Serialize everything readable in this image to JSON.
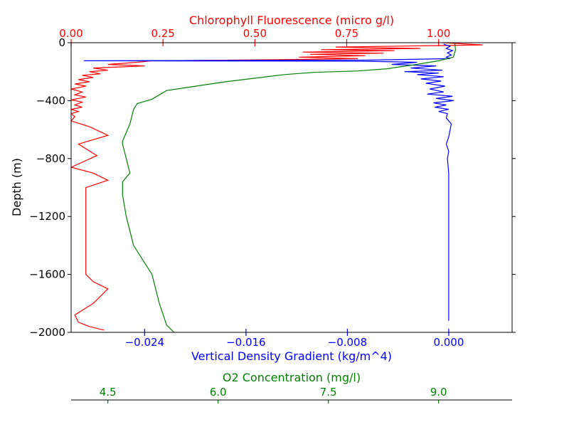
{
  "chart_data": {
    "type": "line",
    "ylabel": "Depth (m)",
    "ylim": [
      -2000,
      0
    ],
    "y_ticks": [
      0,
      -400,
      -800,
      -1200,
      -1600,
      -2000
    ],
    "y_tick_labels": [
      "0",
      "−400",
      "−800",
      "−1200",
      "−1600",
      "−2000"
    ],
    "grid": false,
    "axes": {
      "chlorophyll": {
        "label": "Chlorophyll Fluorescence (micro g/l)",
        "color": "#ff0000",
        "position": "top",
        "range": [
          0.0,
          1.2
        ],
        "ticks": [
          0.0,
          0.25,
          0.5,
          0.75,
          1.0
        ],
        "tick_labels": [
          "0.00",
          "0.25",
          "0.50",
          "0.75",
          "1.00"
        ]
      },
      "density": {
        "label": "Vertical Density Gradient (kg/m^4)",
        "color": "#0000ff",
        "position": "bottom",
        "range": [
          -0.0298,
          0.005
        ],
        "ticks": [
          -0.024,
          -0.016,
          -0.008,
          0.0
        ],
        "tick_labels": [
          "−0.024",
          "−0.016",
          "−0.008",
          "0.000"
        ]
      },
      "oxygen": {
        "label": "O2 Concentration (mg/l)",
        "color": "#008000",
        "position": "bottom-offset",
        "range": [
          4.0,
          10.0
        ],
        "ticks": [
          4.5,
          6.0,
          7.5,
          9.0
        ],
        "tick_labels": [
          "4.5",
          "6.0",
          "7.5",
          "9.0"
        ]
      }
    },
    "series": [
      {
        "axis": "chlorophyll",
        "color": "#ff0000",
        "points": [
          [
            1.01,
            0
          ],
          [
            1.12,
            -15
          ],
          [
            0.72,
            -30
          ],
          [
            0.95,
            -40
          ],
          [
            0.68,
            -48
          ],
          [
            0.88,
            -55
          ],
          [
            0.63,
            -65
          ],
          [
            0.85,
            -72
          ],
          [
            0.65,
            -80
          ],
          [
            0.8,
            -90
          ],
          [
            0.62,
            -100
          ],
          [
            0.78,
            -110
          ],
          [
            0.55,
            -118
          ],
          [
            0.22,
            -125
          ],
          [
            0.18,
            -135
          ],
          [
            0.1,
            -150
          ],
          [
            0.2,
            -160
          ],
          [
            0.06,
            -175
          ],
          [
            0.1,
            -190
          ],
          [
            0.05,
            -200
          ],
          [
            0.08,
            -215
          ],
          [
            0.03,
            -225
          ],
          [
            0.06,
            -240
          ],
          [
            0.02,
            -255
          ],
          [
            0.05,
            -270
          ],
          [
            0.01,
            -285
          ],
          [
            0.04,
            -300
          ],
          [
            0.0,
            -320
          ],
          [
            0.03,
            -340
          ],
          [
            0.01,
            -360
          ],
          [
            0.04,
            -375
          ],
          [
            0.0,
            -395
          ],
          [
            0.03,
            -410
          ],
          [
            0.01,
            -430
          ],
          [
            0.03,
            -445
          ],
          [
            0.0,
            -460
          ],
          [
            0.02,
            -475
          ],
          [
            0.0,
            -490
          ],
          [
            0.01,
            -510
          ],
          [
            0.0,
            -540
          ],
          [
            0.05,
            -580
          ],
          [
            0.1,
            -640
          ],
          [
            0.02,
            -700
          ],
          [
            0.07,
            -780
          ],
          [
            0.0,
            -860
          ],
          [
            0.06,
            -900
          ],
          [
            0.1,
            -950
          ],
          [
            0.04,
            -1000
          ],
          [
            0.04,
            -1100
          ],
          [
            0.04,
            -1300
          ],
          [
            0.04,
            -1500
          ],
          [
            0.04,
            -1600
          ],
          [
            0.06,
            -1650
          ],
          [
            0.1,
            -1700
          ],
          [
            0.06,
            -1800
          ],
          [
            0.01,
            -1880
          ],
          [
            0.02,
            -1930
          ],
          [
            0.05,
            -1960
          ],
          [
            0.09,
            -1985
          ]
        ]
      },
      {
        "axis": "density",
        "color": "#0000ff",
        "points": [
          [
            -0.0004,
            -10
          ],
          [
            0.0001,
            -25
          ],
          [
            -0.0002,
            -40
          ],
          [
            0.0003,
            -55
          ],
          [
            -0.0001,
            -70
          ],
          [
            0.0002,
            -85
          ],
          [
            -0.0002,
            -100
          ],
          [
            0.0001,
            -110
          ],
          [
            -0.006,
            -120
          ],
          [
            -0.0288,
            -125
          ],
          [
            -0.007,
            -128
          ],
          [
            -0.0025,
            -135
          ],
          [
            -0.0045,
            -150
          ],
          [
            -0.001,
            -160
          ],
          [
            -0.003,
            -175
          ],
          [
            -0.0005,
            -190
          ],
          [
            -0.0035,
            -200
          ],
          [
            -0.0008,
            -210
          ],
          [
            -0.0025,
            -220
          ],
          [
            -0.0004,
            -235
          ],
          [
            -0.0022,
            -250
          ],
          [
            -0.0006,
            -265
          ],
          [
            -0.0018,
            -280
          ],
          [
            -0.0003,
            -300
          ],
          [
            -0.0015,
            -320
          ],
          [
            -0.0004,
            -340
          ],
          [
            -0.0017,
            -355
          ],
          [
            0.0003,
            -370
          ],
          [
            -0.001,
            -385
          ],
          [
            0.0004,
            -400
          ],
          [
            -0.0012,
            -415
          ],
          [
            -0.0002,
            -430
          ],
          [
            -0.0011,
            -445
          ],
          [
            0.0,
            -460
          ],
          [
            -0.0008,
            -475
          ],
          [
            -0.0001,
            -490
          ],
          [
            -0.0002,
            -520
          ],
          [
            0.0002,
            -560
          ],
          [
            0.0,
            -650
          ],
          [
            -0.0002,
            -700
          ],
          [
            0.0,
            -750
          ],
          [
            -0.0001,
            -800
          ],
          [
            0.0,
            -900
          ],
          [
            0.0,
            -1000
          ],
          [
            0.0,
            -1200
          ],
          [
            0.0,
            -1400
          ],
          [
            0.0,
            -1600
          ],
          [
            0.0,
            -1800
          ],
          [
            0.0,
            -1920
          ]
        ]
      },
      {
        "axis": "oxygen",
        "color": "#008000",
        "points": [
          [
            9.22,
            0
          ],
          [
            9.23,
            -50
          ],
          [
            9.2,
            -100
          ],
          [
            9.0,
            -125
          ],
          [
            8.7,
            -150
          ],
          [
            8.3,
            -180
          ],
          [
            7.9,
            -195
          ],
          [
            7.3,
            -205
          ],
          [
            6.9,
            -220
          ],
          [
            6.5,
            -245
          ],
          [
            6.1,
            -270
          ],
          [
            5.7,
            -300
          ],
          [
            5.3,
            -330
          ],
          [
            5.1,
            -390
          ],
          [
            4.9,
            -420
          ],
          [
            4.85,
            -460
          ],
          [
            4.8,
            -560
          ],
          [
            4.7,
            -680
          ],
          [
            4.7,
            -700
          ],
          [
            4.75,
            -800
          ],
          [
            4.8,
            -900
          ],
          [
            4.7,
            -960
          ],
          [
            4.7,
            -1050
          ],
          [
            4.75,
            -1200
          ],
          [
            4.85,
            -1400
          ],
          [
            5.1,
            -1600
          ],
          [
            5.15,
            -1700
          ],
          [
            5.2,
            -1800
          ],
          [
            5.3,
            -1950
          ],
          [
            5.4,
            -2000
          ]
        ]
      }
    ]
  }
}
